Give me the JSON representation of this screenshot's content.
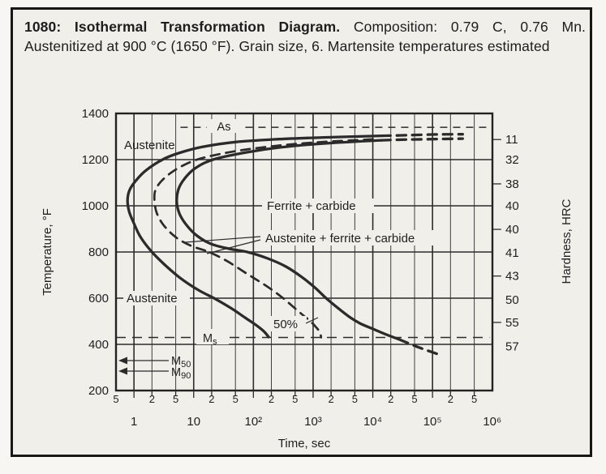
{
  "title": {
    "bold": "1080: Isothermal Transformation Diagram.",
    "rest": " Composition: 0.79 C, 0.76 Mn. Austenitized at 900 °C (1650 °F). Grain size, 6. Martensite temperatures estimated"
  },
  "chart_data": {
    "type": "line",
    "title": "Isothermal transformation (TTT) diagram for 1080 steel",
    "xlabel": "Time, sec",
    "ylabel": "Temperature, °F",
    "ylabel_right": "Hardness, HRC",
    "x_scale": "log",
    "xlim": [
      0.5,
      1000000
    ],
    "ylim": [
      200,
      1400
    ],
    "grid": true,
    "y_tick_values": [
      1400,
      1200,
      1000,
      800,
      600,
      400,
      200
    ],
    "y_tick_labels": [
      "1400",
      "1200",
      "1000",
      "800",
      "600",
      "400",
      "200"
    ],
    "x_major_tick_values": [
      1,
      10,
      100,
      1000,
      10000,
      100000,
      1000000
    ],
    "x_major_tick_labels": [
      "1",
      "10",
      "10²",
      "10³",
      "10⁴",
      "10⁵",
      "10⁶"
    ],
    "x_minor_tick_values": [
      0.5,
      2,
      5,
      20,
      50,
      200,
      500,
      2000,
      5000,
      20000,
      50000,
      200000,
      500000
    ],
    "x_minor_tick_labels": [
      "5",
      "2",
      "5",
      "2",
      "5",
      "2",
      "5",
      "2",
      "5",
      "2",
      "5",
      "2",
      "5"
    ],
    "hardness_ticks": [
      {
        "hrc": "11",
        "temp_F": 1287,
        "tick": true
      },
      {
        "hrc": "32",
        "temp_F": 1200,
        "tick": false
      },
      {
        "hrc": "38",
        "temp_F": 1095,
        "tick": true
      },
      {
        "hrc": "40",
        "temp_F": 1000,
        "tick": false
      },
      {
        "hrc": "40",
        "temp_F": 898,
        "tick": true
      },
      {
        "hrc": "41",
        "temp_F": 796,
        "tick": false
      },
      {
        "hrc": "43",
        "temp_F": 696,
        "tick": true
      },
      {
        "hrc": "50",
        "temp_F": 593,
        "tick": false
      },
      {
        "hrc": "55",
        "temp_F": 495,
        "tick": true
      },
      {
        "hrc": "57",
        "temp_F": 392,
        "tick": false
      }
    ],
    "series": [
      {
        "name": "transformation-start",
        "width": 3.3,
        "segments": [
          {
            "style": "solid",
            "points": [
              [
                14000,
                1303
              ],
              [
                1500,
                1296
              ],
              [
                240,
                1288
              ],
              [
                50,
                1276
              ],
              [
                14,
                1255
              ],
              [
                5.6,
                1228
              ],
              [
                3,
                1200
              ],
              [
                1.6,
                1154
              ],
              [
                1.1,
                1112
              ],
              [
                0.85,
                1070
              ],
              [
                0.78,
                1025
              ],
              [
                0.83,
                975
              ],
              [
                1.0,
                923
              ],
              [
                1.3,
                863
              ],
              [
                2.0,
                800
              ],
              [
                3.3,
                744
              ],
              [
                5.9,
                688
              ],
              [
                12,
                635
              ],
              [
                23,
                597
              ],
              [
                44,
                554
              ],
              [
                72,
                516
              ],
              [
                110,
                484
              ],
              [
                150,
                456
              ],
              [
                180,
                432
              ]
            ]
          },
          {
            "style": "dashed",
            "points": [
              [
                14000,
                1303
              ],
              [
                40000,
                1306
              ],
              [
                120000,
                1309
              ],
              [
                320000,
                1310
              ]
            ]
          }
        ]
      },
      {
        "name": "transformation-50pct",
        "width": 2.7,
        "segments": [
          {
            "style": "dashed",
            "points": [
              [
                10000,
                1288
              ],
              [
                1500,
                1277
              ],
              [
                320,
                1263
              ],
              [
                68,
                1242
              ],
              [
                21,
                1218
              ],
              [
                9.5,
                1193
              ],
              [
                4.8,
                1154
              ],
              [
                3.0,
                1112
              ],
              [
                2.3,
                1070
              ],
              [
                2.2,
                1025
              ],
              [
                2.4,
                970
              ],
              [
                3.1,
                918
              ],
              [
                4.9,
                866
              ],
              [
                8.8,
                828
              ],
              [
                18,
                800
              ],
              [
                36,
                761
              ],
              [
                79,
                705
              ],
              [
                158,
                656
              ],
              [
                278,
                611
              ],
              [
                440,
                568
              ],
              [
                650,
                530
              ],
              [
                880,
                502
              ],
              [
                1100,
                477
              ],
              [
                1300,
                452
              ],
              [
                1360,
                430
              ]
            ]
          }
        ]
      },
      {
        "name": "transformation-finish",
        "width": 3.3,
        "segments": [
          {
            "style": "solid",
            "points": [
              [
                14000,
                1284
              ],
              [
                1500,
                1270
              ],
              [
                280,
                1253
              ],
              [
                79,
                1232
              ],
              [
                21,
                1200
              ],
              [
                10.4,
                1161
              ],
              [
                7.1,
                1119
              ],
              [
                5.6,
                1074
              ],
              [
                5.2,
                1018
              ],
              [
                5.8,
                965
              ],
              [
                7.6,
                916
              ],
              [
                11.4,
                870
              ],
              [
                19.5,
                835
              ],
              [
                39,
                814
              ],
              [
                79,
                800
              ],
              [
                174,
                772
              ],
              [
                350,
                737
              ],
              [
                650,
                691
              ],
              [
                1070,
                646
              ],
              [
                1650,
                600
              ],
              [
                2700,
                554
              ],
              [
                4200,
                516
              ],
              [
                6100,
                491
              ],
              [
                10000,
                467
              ],
              [
                17000,
                442
              ],
              [
                28000,
                421
              ]
            ]
          },
          {
            "style": "dashed",
            "points": [
              [
                28000,
                421
              ],
              [
                41000,
                403
              ],
              [
                66000,
                382
              ],
              [
                136000,
                354
              ]
            ]
          },
          {
            "style": "dashed",
            "points": [
              [
                14000,
                1284
              ],
              [
                40000,
                1287
              ],
              [
                120000,
                1289
              ],
              [
                320000,
                1291
              ]
            ]
          }
        ]
      }
    ],
    "reference_lines": [
      {
        "name": "As",
        "temp_F": 1340,
        "style": "dashed",
        "t_range": [
          6,
          800000
        ]
      },
      {
        "name": "Ms",
        "temp_F": 430,
        "style": "dashed",
        "t_range": [
          0.5,
          900000
        ]
      },
      {
        "name": "M50",
        "temp_F": 330,
        "style": "arrow-left"
      },
      {
        "name": "M90",
        "temp_F": 285,
        "style": "arrow-left"
      }
    ],
    "region_labels": {
      "upper": "Austenite",
      "lower": "Austenite",
      "right": "Ferrite + carbide",
      "middle": "Austenite + ferrite + carbide",
      "fifty": "50%"
    },
    "line_labels": {
      "as": "As",
      "ms_main": "M",
      "ms_sub": "s",
      "m50_main": "M",
      "m50_sub": "50",
      "m90_main": "M",
      "m90_sub": "90"
    },
    "legend_position": "none"
  }
}
